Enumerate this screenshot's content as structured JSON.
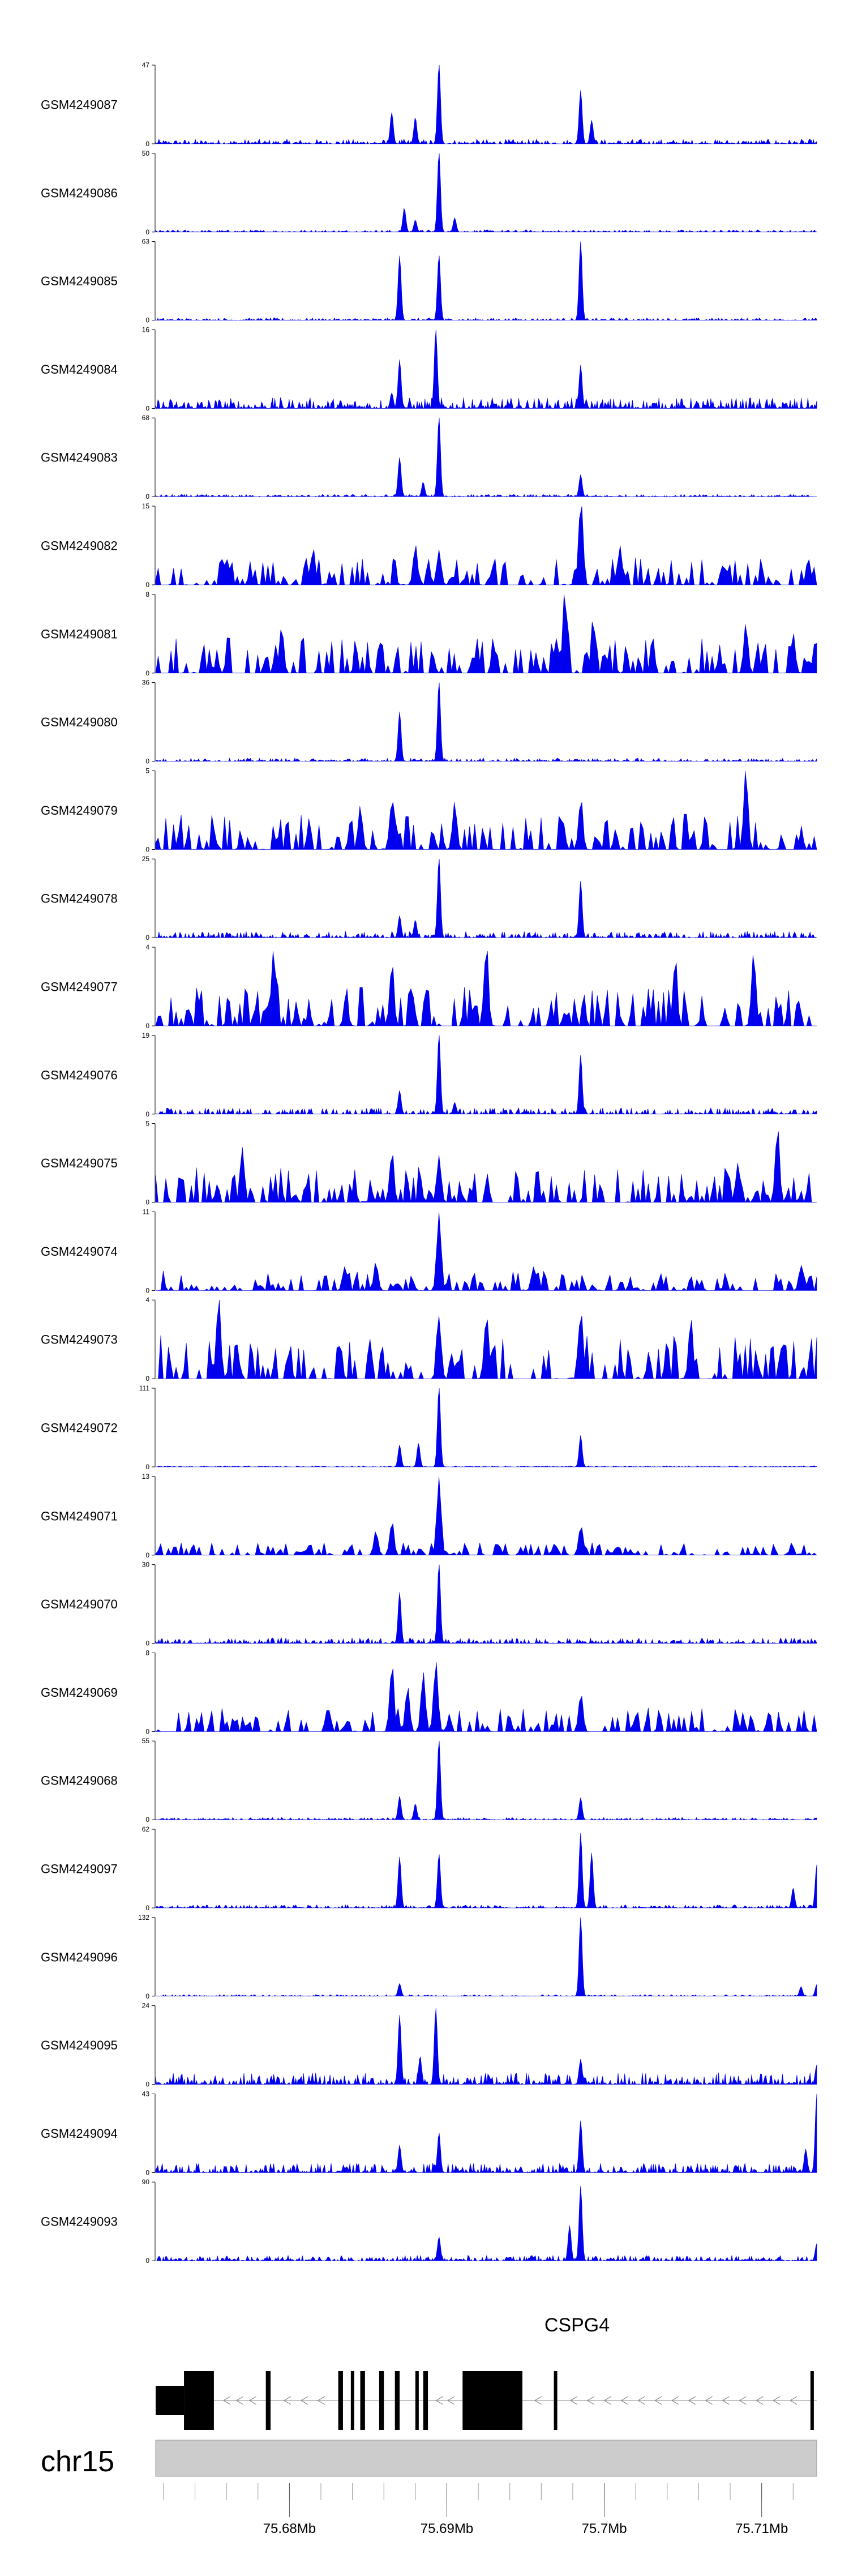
{
  "chart_data": {
    "type": "area",
    "title": "",
    "region": {
      "chromosome": "chr15",
      "start_mb": 75.6715,
      "end_mb": 75.7135
    },
    "fill_color": "#0000ee",
    "tracks": [
      {
        "name": "GSM4249087",
        "ylim": [
          0,
          47
        ],
        "peaks": [
          [
            75.6865,
            0.4
          ],
          [
            75.688,
            0.33
          ],
          [
            75.6895,
            1.0
          ],
          [
            75.6985,
            0.68
          ],
          [
            75.6992,
            0.3
          ]
        ],
        "noise": 0.06,
        "style": "smooth"
      },
      {
        "name": "GSM4249086",
        "ylim": [
          0,
          50
        ],
        "peaks": [
          [
            75.6873,
            0.3
          ],
          [
            75.688,
            0.15
          ],
          [
            75.6895,
            1.0
          ],
          [
            75.6905,
            0.18
          ]
        ],
        "noise": 0.03,
        "style": "smooth"
      },
      {
        "name": "GSM4249085",
        "ylim": [
          0,
          63
        ],
        "peaks": [
          [
            75.687,
            0.82
          ],
          [
            75.6895,
            0.82
          ],
          [
            75.6985,
            1.0
          ]
        ],
        "noise": 0.03,
        "style": "smooth"
      },
      {
        "name": "GSM4249084",
        "ylim": [
          0,
          16
        ],
        "peaks": [
          [
            75.687,
            0.62
          ],
          [
            75.6893,
            1.0
          ],
          [
            75.6985,
            0.55
          ],
          [
            75.6865,
            0.2
          ]
        ],
        "noise": 0.14,
        "style": "smooth"
      },
      {
        "name": "GSM4249083",
        "ylim": [
          0,
          68
        ],
        "peaks": [
          [
            75.687,
            0.5
          ],
          [
            75.6895,
            1.0
          ],
          [
            75.6985,
            0.28
          ],
          [
            75.6885,
            0.18
          ]
        ],
        "noise": 0.03,
        "style": "smooth"
      },
      {
        "name": "GSM4249082",
        "ylim": [
          0,
          15
        ],
        "peaks": [
          [
            75.6985,
            1.0
          ],
          [
            75.688,
            0.5
          ],
          [
            75.6895,
            0.45
          ],
          [
            75.701,
            0.5
          ],
          [
            75.6815,
            0.45
          ]
        ],
        "noise": 0.35,
        "style": "triangle"
      },
      {
        "name": "GSM4249081",
        "ylim": [
          0,
          8
        ],
        "peaks": [
          [
            75.6975,
            1.0
          ],
          [
            75.6993,
            0.65
          ],
          [
            75.6795,
            0.55
          ],
          [
            75.709,
            0.62
          ],
          [
            75.712,
            0.5
          ]
        ],
        "noise": 0.45,
        "style": "triangle"
      },
      {
        "name": "GSM4249080",
        "ylim": [
          0,
          36
        ],
        "peaks": [
          [
            75.687,
            0.63
          ],
          [
            75.6895,
            1.0
          ]
        ],
        "noise": 0.04,
        "style": "smooth"
      },
      {
        "name": "GSM4249079",
        "ylim": [
          0,
          5
        ],
        "peaks": [
          [
            75.709,
            1.0
          ],
          [
            75.6865,
            0.6
          ],
          [
            75.6905,
            0.6
          ],
          [
            75.6985,
            0.6
          ],
          [
            75.6845,
            0.55
          ]
        ],
        "noise": 0.45,
        "style": "triangle"
      },
      {
        "name": "GSM4249078",
        "ylim": [
          0,
          25
        ],
        "peaks": [
          [
            75.6895,
            1.0
          ],
          [
            75.6985,
            0.72
          ],
          [
            75.687,
            0.28
          ],
          [
            75.688,
            0.22
          ]
        ],
        "noise": 0.08,
        "style": "smooth"
      },
      {
        "name": "GSM4249077",
        "ylim": [
          0,
          4
        ],
        "peaks": [
          [
            75.679,
            0.95
          ],
          [
            75.6925,
            0.95
          ],
          [
            75.7095,
            0.9
          ],
          [
            75.7045,
            0.8
          ],
          [
            75.6865,
            0.75
          ]
        ],
        "noise": 0.5,
        "style": "triangle"
      },
      {
        "name": "GSM4249076",
        "ylim": [
          0,
          19
        ],
        "peaks": [
          [
            75.6895,
            1.0
          ],
          [
            75.6985,
            0.75
          ],
          [
            75.687,
            0.3
          ],
          [
            75.6905,
            0.15
          ]
        ],
        "noise": 0.08,
        "style": "smooth"
      },
      {
        "name": "GSM4249075",
        "ylim": [
          0,
          5
        ],
        "peaks": [
          [
            75.711,
            0.9
          ],
          [
            75.677,
            0.7
          ],
          [
            75.6865,
            0.6
          ],
          [
            75.6895,
            0.6
          ],
          [
            75.7085,
            0.5
          ]
        ],
        "noise": 0.45,
        "style": "triangle"
      },
      {
        "name": "GSM4249074",
        "ylim": [
          0,
          11
        ],
        "peaks": [
          [
            75.6895,
            1.0
          ],
          [
            75.7125,
            0.32
          ],
          [
            75.6835,
            0.3
          ],
          [
            75.6855,
            0.35
          ],
          [
            75.6955,
            0.3
          ]
        ],
        "noise": 0.25,
        "style": "triangle"
      },
      {
        "name": "GSM4249073",
        "ylim": [
          0,
          4
        ],
        "peaks": [
          [
            75.6755,
            1.0
          ],
          [
            75.6895,
            0.8
          ],
          [
            75.6985,
            0.8
          ],
          [
            75.6925,
            0.75
          ],
          [
            75.7055,
            0.75
          ]
        ],
        "noise": 0.55,
        "style": "triangle"
      },
      {
        "name": "GSM4249072",
        "ylim": [
          0,
          111
        ],
        "peaks": [
          [
            75.6895,
            1.0
          ],
          [
            75.6985,
            0.4
          ],
          [
            75.687,
            0.28
          ],
          [
            75.6882,
            0.3
          ]
        ],
        "noise": 0.015,
        "style": "smooth"
      },
      {
        "name": "GSM4249071",
        "ylim": [
          0,
          13
        ],
        "peaks": [
          [
            75.6895,
            1.0
          ],
          [
            75.6865,
            0.4
          ],
          [
            75.6985,
            0.35
          ],
          [
            75.6855,
            0.3
          ]
        ],
        "noise": 0.16,
        "style": "triangle"
      },
      {
        "name": "GSM4249070",
        "ylim": [
          0,
          30
        ],
        "peaks": [
          [
            75.687,
            0.65
          ],
          [
            75.6895,
            1.0
          ]
        ],
        "noise": 0.07,
        "style": "smooth"
      },
      {
        "name": "GSM4249069",
        "ylim": [
          0,
          8
        ],
        "peaks": [
          [
            75.6865,
            0.8
          ],
          [
            75.6885,
            0.75
          ],
          [
            75.6893,
            0.88
          ],
          [
            75.6875,
            0.55
          ],
          [
            75.6985,
            0.45
          ]
        ],
        "noise": 0.3,
        "style": "triangle"
      },
      {
        "name": "GSM4249068",
        "ylim": [
          0,
          55
        ],
        "peaks": [
          [
            75.6895,
            1.0
          ],
          [
            75.687,
            0.3
          ],
          [
            75.6985,
            0.28
          ],
          [
            75.688,
            0.2
          ]
        ],
        "noise": 0.03,
        "style": "smooth"
      },
      {
        "name": "GSM4249097",
        "ylim": [
          0,
          62
        ],
        "peaks": [
          [
            75.6985,
            0.95
          ],
          [
            75.6992,
            0.7
          ],
          [
            75.687,
            0.65
          ],
          [
            75.6895,
            0.68
          ],
          [
            75.7135,
            0.55
          ],
          [
            75.712,
            0.25
          ]
        ],
        "noise": 0.04,
        "style": "smooth"
      },
      {
        "name": "GSM4249096",
        "ylim": [
          0,
          132
        ],
        "peaks": [
          [
            75.6985,
            1.0
          ],
          [
            75.687,
            0.16
          ],
          [
            75.7135,
            0.15
          ],
          [
            75.7125,
            0.12
          ]
        ],
        "noise": 0.02,
        "style": "smooth"
      },
      {
        "name": "GSM4249095",
        "ylim": [
          0,
          24
        ],
        "peaks": [
          [
            75.687,
            0.88
          ],
          [
            75.6893,
            0.97
          ],
          [
            75.6883,
            0.35
          ],
          [
            75.6985,
            0.32
          ],
          [
            75.7135,
            0.25
          ]
        ],
        "noise": 0.15,
        "style": "smooth"
      },
      {
        "name": "GSM4249094",
        "ylim": [
          0,
          43
        ],
        "peaks": [
          [
            75.6985,
            0.66
          ],
          [
            75.7135,
            1.0
          ],
          [
            75.7128,
            0.3
          ],
          [
            75.687,
            0.35
          ],
          [
            75.6895,
            0.5
          ]
        ],
        "noise": 0.12,
        "style": "smooth"
      },
      {
        "name": "GSM4249093",
        "ylim": [
          0,
          90
        ],
        "peaks": [
          [
            75.6985,
            0.95
          ],
          [
            75.6978,
            0.45
          ],
          [
            75.6895,
            0.3
          ],
          [
            75.7135,
            0.22
          ]
        ],
        "noise": 0.07,
        "style": "smooth"
      }
    ],
    "gene": {
      "name": "CSPG4",
      "strand": "-",
      "start_mb": 75.6715,
      "end_mb": 75.7135,
      "exons_mb": [
        [
          75.6733,
          75.6752
        ],
        [
          75.6785,
          75.6788
        ],
        [
          75.6831,
          75.6834
        ],
        [
          75.6839,
          75.6841
        ],
        [
          75.6845,
          75.6848
        ],
        [
          75.6857,
          75.686
        ],
        [
          75.6867,
          75.687
        ],
        [
          75.688,
          75.6882
        ],
        [
          75.6885,
          75.6888
        ],
        [
          75.691,
          75.6948
        ],
        [
          75.6968,
          75.697
        ],
        [
          75.7131,
          75.7133
        ]
      ],
      "utr_mb": [
        [
          75.6715,
          75.6733
        ]
      ]
    },
    "ideogram": {
      "chromosome": "chr15"
    },
    "x_axis": {
      "ticks_mb": [
        75.68,
        75.69,
        75.7,
        75.71
      ],
      "tick_labels": [
        "75.68Mb",
        "75.69Mb",
        "75.7Mb",
        "75.71Mb"
      ],
      "minor_tick_step_mb": 0.002
    },
    "grid": false,
    "legend": "none"
  }
}
